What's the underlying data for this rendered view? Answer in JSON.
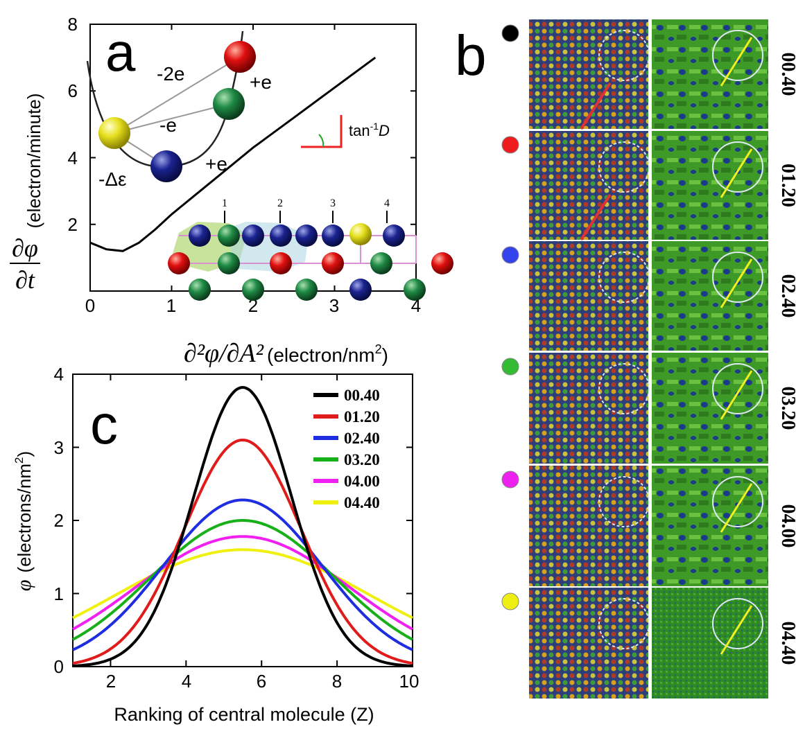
{
  "panel_a": {
    "letter": "a",
    "ylabel": "(electron/minute)",
    "ylabel_math": [
      "∂φ",
      "∂t"
    ],
    "xlabel_math": "∂²φ/∂A²",
    "xlabel_unit": "(electron/nm",
    "xlabel_sup": "2",
    "xlabel_close": ")",
    "ytick_labels": [
      "8",
      "6",
      "4",
      "2"
    ],
    "xtick_labels": [
      "0",
      "1",
      "2",
      "3",
      "4"
    ],
    "slope_label": "tan",
    "slope_sup": "-1",
    "slope_var": "D",
    "inset_labels": [
      "-2e",
      "+e",
      "-e",
      "+e",
      "-Δε"
    ],
    "lattice_numbers": [
      "1",
      "2",
      "3",
      "4"
    ]
  },
  "panel_b": {
    "letter": "b",
    "rows": [
      {
        "time": "00.40",
        "dot_color": "#000000"
      },
      {
        "time": "01.20",
        "dot_color": "#ee1c1c"
      },
      {
        "time": "02.40",
        "dot_color": "#3344ee"
      },
      {
        "time": "03.20",
        "dot_color": "#33bb33"
      },
      {
        "time": "04.00",
        "dot_color": "#ee22ee"
      },
      {
        "time": "04.40",
        "dot_color": "#eeee11"
      }
    ]
  },
  "panel_c": {
    "letter": "c",
    "ylabel_sym": "φ",
    "ylabel_unit": "(electrons/nm",
    "ylabel_sup": "2",
    "ylabel_close": ")",
    "xlabel": "Ranking of central molecule (Z)",
    "ytick_labels": [
      "0",
      "1",
      "2",
      "3",
      "4"
    ],
    "xtick_labels": [
      "2",
      "4",
      "6",
      "8",
      "10"
    ]
  },
  "chart_data": [
    {
      "type": "line",
      "panel": "a",
      "xlim": [
        0,
        4
      ],
      "ylim": [
        0,
        8
      ],
      "x": [
        0,
        0.2,
        0.4,
        0.6,
        0.8,
        1.0,
        1.5,
        2.0,
        2.5,
        3.0,
        3.5
      ],
      "series": [
        {
          "color": "#000000",
          "values": [
            1.45,
            1.25,
            1.2,
            1.45,
            1.85,
            2.3,
            3.3,
            4.3,
            5.2,
            6.1,
            7.0
          ]
        }
      ]
    },
    {
      "type": "line",
      "panel": "c",
      "xlim": [
        1,
        10
      ],
      "ylim": [
        0,
        4
      ],
      "center": 5.5,
      "series": [
        {
          "name": "00.40",
          "color": "#000000",
          "peak": 3.82,
          "width": 1.3
        },
        {
          "name": "01.20",
          "color": "#e01b1b",
          "peak": 3.1,
          "width": 1.55
        },
        {
          "name": "02.40",
          "color": "#1f2de0",
          "peak": 2.28,
          "width": 2.1
        },
        {
          "name": "03.20",
          "color": "#18b018",
          "peak": 2.0,
          "width": 2.45
        },
        {
          "name": "04.00",
          "color": "#f020f0",
          "peak": 1.78,
          "width": 2.85
        },
        {
          "name": "04.40",
          "color": "#f0f010",
          "peak": 1.6,
          "width": 3.4
        }
      ]
    }
  ]
}
